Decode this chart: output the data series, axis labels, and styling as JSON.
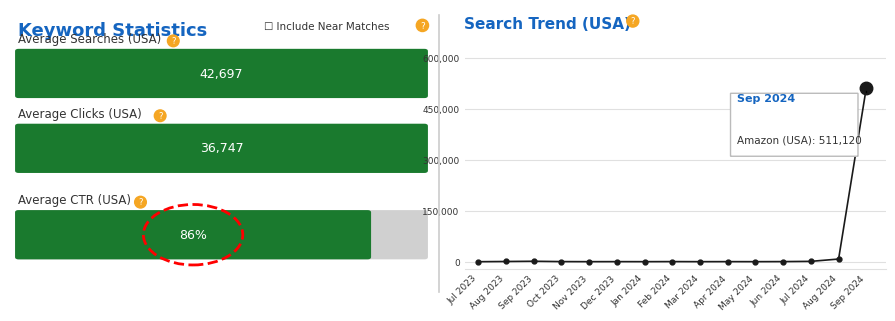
{
  "left_title": "Keyword Statistics",
  "right_title": "Search Trend (USA)",
  "include_near_matches": "Include Near Matches",
  "stat_labels": [
    "Average Searches (USA)",
    "Average Clicks (USA)",
    "Average CTR (USA)"
  ],
  "stat_values": [
    "42,697",
    "36,747",
    "86%"
  ],
  "bar_full_color": "#1a7a2e",
  "bar_bg_color": "#d0d0d0",
  "ctr_pct": 0.86,
  "title_color": "#1565c0",
  "label_color": "#333333",
  "bar_text_color": "#ffffff",
  "orange_color": "#f5a623",
  "trend_months": [
    "Jul 2023",
    "Aug 2023",
    "Sep 2023",
    "Oct 2023",
    "Nov 2023",
    "Dec 2023",
    "Jan 2024",
    "Feb 2024",
    "Mar 2024",
    "Apr 2024",
    "May 2024",
    "Jun 2024",
    "Jul 2024",
    "Aug 2024",
    "Sep 2024"
  ],
  "trend_values": [
    200,
    800,
    1500,
    500,
    300,
    400,
    300,
    500,
    300,
    400,
    300,
    500,
    1200,
    8000,
    511120
  ],
  "tooltip_label": "Sep 2024",
  "tooltip_value": "Amazon (USA): 511,120",
  "yticks": [
    0,
    150000,
    300000,
    450000,
    600000
  ],
  "ytick_labels": [
    "0",
    "150,000",
    "300,000",
    "450,000",
    "600,000"
  ],
  "bg_color": "#ffffff",
  "grid_color": "#e0e0e0",
  "line_color": "#1a1a1a",
  "marker_color": "#1a1a1a",
  "divider_color": "#cccccc"
}
